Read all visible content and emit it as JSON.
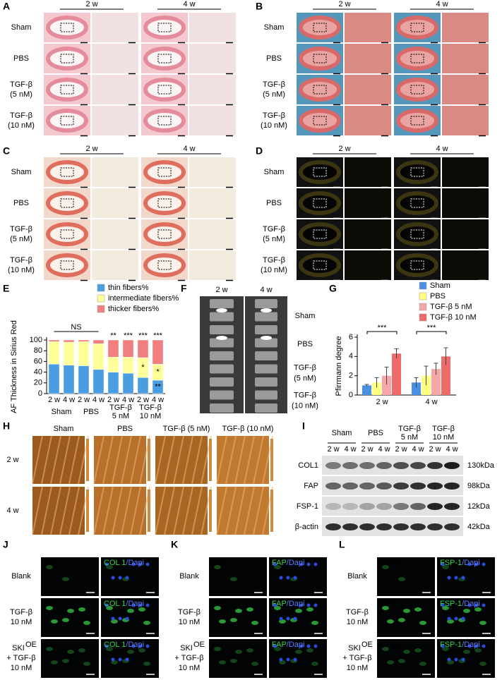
{
  "panels": {
    "A": {
      "label": "A",
      "columns": [
        "2 w",
        "4 w"
      ],
      "rows": [
        [
          "Sham"
        ],
        [
          "PBS"
        ],
        [
          "TGF-β",
          "(5 nM)"
        ],
        [
          "TGF-β",
          "(10 nM)"
        ]
      ]
    },
    "B": {
      "label": "B",
      "columns": [
        "2 w",
        "4 w"
      ],
      "rows": [
        [
          "Sham"
        ],
        [
          "PBS"
        ],
        [
          "TGF-β",
          "(5 nM)"
        ],
        [
          "TGF-β",
          "(10 nM)"
        ]
      ]
    },
    "C": {
      "label": "C",
      "columns": [
        "2 w",
        "4 w"
      ],
      "rows": [
        [
          "Sham"
        ],
        [
          "PBS"
        ],
        [
          "TGF-β",
          "(5 nM)"
        ],
        [
          "TGF-β",
          "(10 nM)"
        ]
      ]
    },
    "D": {
      "label": "D",
      "columns": [
        "2 w",
        "4 w"
      ],
      "rows": [
        [
          "Sham"
        ],
        [
          "PBS"
        ],
        [
          "TGF-β",
          "(5 nM)"
        ],
        [
          "TGF-β",
          "(10 nM)"
        ]
      ]
    },
    "F": {
      "label": "F",
      "columns": [
        "2 w",
        "4 w"
      ],
      "rows": [
        [
          "Sham"
        ],
        [
          "PBS"
        ],
        [
          "TGF-β",
          "(5 nM)"
        ],
        [
          "TGF-β",
          "(10 nM)"
        ]
      ]
    },
    "H": {
      "label": "H",
      "columns": [
        "Sham",
        "PBS",
        "TGF-β (5 nM)",
        "TGF-β (10 nM)"
      ],
      "rows": [
        "2 w",
        "4 w"
      ]
    },
    "I": {
      "label": "I",
      "groups": [
        [
          "Sham"
        ],
        [
          "PBS"
        ],
        [
          "TGF-β",
          "5 nM"
        ],
        [
          "TGF-β",
          "10 nM"
        ]
      ],
      "lanes": [
        "2 w",
        "4 w"
      ],
      "bands": [
        "COL1",
        "FAP",
        "FSP-1",
        "β-actin"
      ],
      "sizes": [
        "130kDa",
        "98kDa",
        "12kDa",
        "42kDa"
      ]
    },
    "J": {
      "label": "J",
      "stain": "COL 1",
      "merge": [
        "COL 1",
        "/Dapi"
      ],
      "rows": [
        [
          "Blank"
        ],
        [
          "TGF-β",
          "10 nM"
        ]
      ],
      "last_row": {
        "base": "SKI",
        "sup": "OE",
        "lines": [
          "+ TGF-β",
          "10 nM"
        ]
      }
    },
    "K": {
      "label": "K",
      "stain": "FAP",
      "merge": [
        "FAP",
        "/Dapi"
      ],
      "rows": [
        [
          "Blank"
        ],
        [
          "TGF-β",
          "10 nM"
        ]
      ],
      "last_row": {
        "base": "SKI",
        "sup": "OE",
        "lines": [
          "+ TGF-β",
          "10 nM"
        ]
      }
    },
    "L": {
      "label": "L",
      "stain": "FSP-1",
      "merge": [
        "FSP-1",
        "/Dapi"
      ],
      "rows": [
        [
          "Blank"
        ],
        [
          "TGF-β",
          "10 nM"
        ]
      ],
      "last_row": {
        "base": "SKI",
        "sup": "OE",
        "lines": [
          "+ TGF-β",
          "10 nM"
        ]
      }
    }
  },
  "chart_data": [
    {
      "type": "bar",
      "stacked": true,
      "panel": "E",
      "ylabel": "AF Thickness in Sirius Red",
      "categories": [
        "2 w",
        "4 w",
        "2 w",
        "4 w",
        "2 w",
        "4 w",
        "2 w",
        "4 w"
      ],
      "groups": [
        [
          "Sham"
        ],
        [
          "PBS"
        ],
        [
          "TGF-β",
          "5 nM"
        ],
        [
          "TGF-β",
          "10 nM"
        ]
      ],
      "series": [
        {
          "name": "thin fibers%",
          "color": "#4a9de0",
          "values": [
            55,
            53,
            52,
            45,
            40,
            38,
            30,
            25
          ],
          "significance": [
            null,
            null,
            null,
            null,
            null,
            null,
            null,
            "**"
          ]
        },
        {
          "name": "intermediate fibers%",
          "color": "#ffff99",
          "values": [
            42,
            43,
            45,
            48,
            28,
            30,
            37,
            30
          ],
          "significance": [
            null,
            null,
            null,
            null,
            null,
            null,
            "*",
            "*"
          ]
        },
        {
          "name": "thicker fibers%",
          "color": "#f08080",
          "values": [
            3,
            4,
            3,
            7,
            32,
            32,
            33,
            45
          ]
        }
      ],
      "top_labels": [
        null,
        null,
        null,
        null,
        "**",
        "***",
        "***",
        "***"
      ],
      "ns_label": "NS",
      "ylim": [
        0,
        100
      ],
      "yticks": [
        0,
        20,
        40,
        60,
        80,
        100
      ]
    },
    {
      "type": "bar",
      "stacked": false,
      "panel": "G",
      "ylabel": "Pfirrmann degree",
      "categories": [
        "2 w",
        "4 w"
      ],
      "series": [
        {
          "name": "Sham",
          "color": "#4a90e2",
          "values": [
            1.0,
            1.3
          ],
          "errors": [
            0.1,
            0.5
          ]
        },
        {
          "name": "PBS",
          "color": "#ffff80",
          "values": [
            1.3,
            2.0
          ],
          "errors": [
            0.5,
            1.0
          ]
        },
        {
          "name": "TGF-β 5 nM",
          "color": "#f4a7a7",
          "values": [
            2.0,
            2.7
          ],
          "errors": [
            0.9,
            0.6
          ]
        },
        {
          "name": "TGF-β 10 nM",
          "color": "#ee6b6b",
          "values": [
            4.3,
            4.0
          ],
          "errors": [
            0.5,
            0.9
          ]
        }
      ],
      "significance": [
        "***",
        "***"
      ],
      "ylim": [
        0,
        6
      ],
      "yticks": [
        0,
        2,
        4,
        6
      ]
    }
  ]
}
